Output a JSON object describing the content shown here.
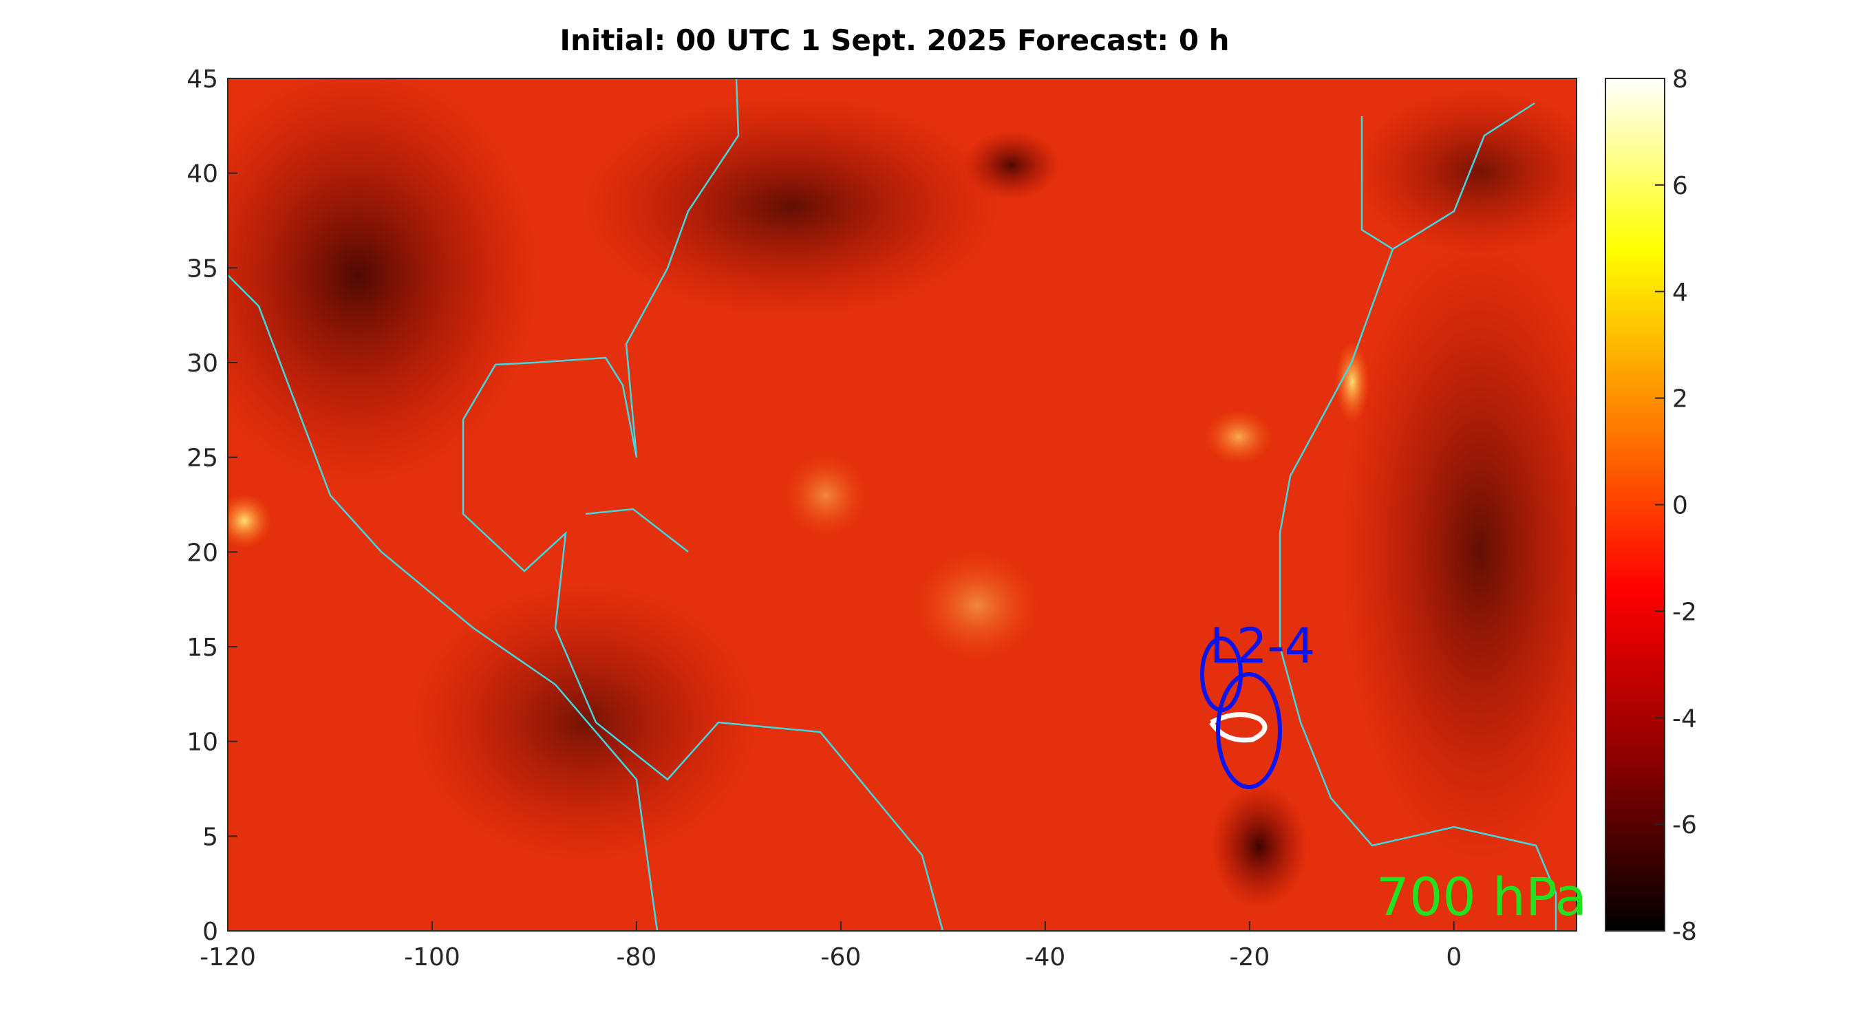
{
  "chart_data": {
    "type": "map",
    "title": "Initial: 00 UTC 1 Sept. 2025 Forecast: 0 h",
    "xlim": [
      -120,
      12
    ],
    "xticks": [
      -120,
      -100,
      -80,
      -60,
      -40,
      -20,
      0
    ],
    "ylim": [
      0,
      45
    ],
    "yticks": [
      0,
      5,
      10,
      15,
      20,
      25,
      30,
      35,
      40,
      45
    ],
    "colorbar": {
      "lim": [
        -8,
        8
      ],
      "ticks": [
        -8,
        -6,
        -4,
        -2,
        0,
        2,
        4,
        6,
        8
      ],
      "colors": [
        "#000000",
        "#8b0000",
        "#ff0000",
        "#ff8000",
        "#ffff00",
        "#ffffff"
      ]
    },
    "annotations": [
      "700 hPa",
      "L2-4"
    ]
  }
}
